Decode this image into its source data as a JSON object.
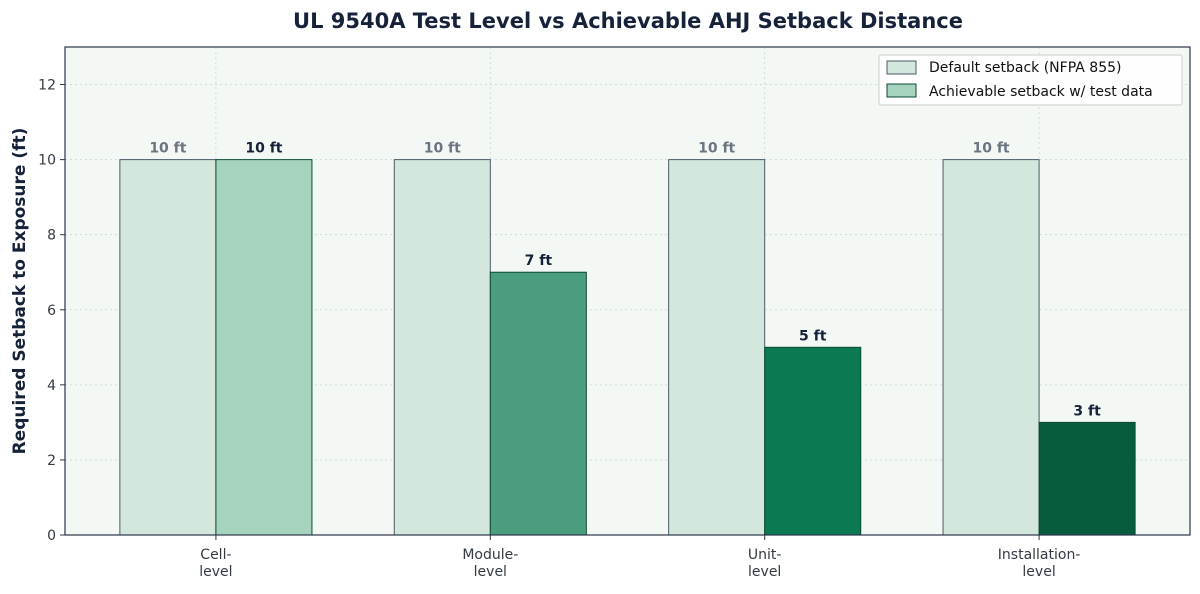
{
  "chart_data": {
    "type": "bar",
    "title": "UL 9540A Test Level vs Achievable AHJ Setback Distance",
    "xlabel": "",
    "ylabel": "Required Setback to Exposure (ft)",
    "categories": [
      [
        "Cell-",
        "level"
      ],
      [
        "Module-",
        "level"
      ],
      [
        "Unit-",
        "level"
      ],
      [
        "Installation-",
        "level"
      ]
    ],
    "ylim": [
      0,
      13
    ],
    "yticks": [
      0,
      2,
      4,
      6,
      8,
      10,
      12
    ],
    "grid": true,
    "legend_position": "top-right",
    "series": [
      {
        "name": "Default setback (NFPA 855)",
        "values": [
          10,
          10,
          10,
          10
        ],
        "labels": [
          "10 ft",
          "10 ft",
          "10 ft",
          "10 ft"
        ],
        "color": "#d3e7dc"
      },
      {
        "name": "Achievable setback w/ test data",
        "values": [
          10,
          7,
          5,
          3
        ],
        "labels": [
          "10 ft",
          "7 ft",
          "5 ft",
          "3 ft"
        ],
        "colors": [
          "#a6d3bd",
          "#4a9e7d",
          "#0b7a52",
          "#075c3e"
        ]
      }
    ],
    "colors": {
      "plot_bg": "#f3f8f4",
      "axis": "#2b3548",
      "grid": "#c9d6cf",
      "default_edge": "#4a5a6a",
      "achievable_edge": "#0b4a33"
    }
  }
}
